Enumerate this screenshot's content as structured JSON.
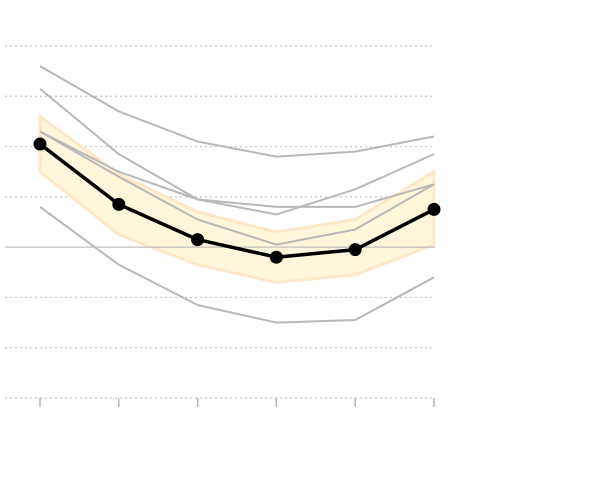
{
  "chart_data": {
    "type": "line",
    "x": [
      1,
      2,
      3,
      4,
      5,
      6
    ],
    "ylim": [
      -3,
      4
    ],
    "yticks": [
      -3,
      -2,
      -1,
      0,
      1,
      2,
      3,
      4
    ],
    "zero_line": 0,
    "grid": true,
    "legend": "none",
    "highlight_color": "#000000",
    "background_color": "#b8b8b8",
    "band_color": "#fff6dc",
    "band_edge_color": "#fde7c9",
    "series": [
      {
        "values": [
          3.6,
          2.7,
          2.1,
          1.8,
          1.9,
          2.2
        ],
        "highlight": false
      },
      {
        "values": [
          3.15,
          1.85,
          0.95,
          0.65,
          1.15,
          1.85
        ],
        "highlight": false
      },
      {
        "values": [
          2.3,
          1.5,
          0.95,
          0.8,
          0.8,
          1.25
        ],
        "highlight": false
      },
      {
        "values": [
          2.3,
          1.4,
          0.55,
          0.05,
          0.35,
          1.25
        ],
        "highlight": false
      },
      {
        "values": [
          0.8,
          -0.35,
          -1.15,
          -1.5,
          -1.45,
          -0.6
        ],
        "highlight": false
      },
      {
        "values": [
          2.05,
          0.85,
          0.15,
          -0.2,
          -0.05,
          0.75
        ],
        "highlight": true
      }
    ],
    "band": {
      "upper": [
        2.6,
        1.45,
        0.7,
        0.3,
        0.55,
        1.5
      ],
      "lower": [
        1.5,
        0.25,
        -0.35,
        -0.7,
        -0.55,
        0.05
      ]
    }
  }
}
